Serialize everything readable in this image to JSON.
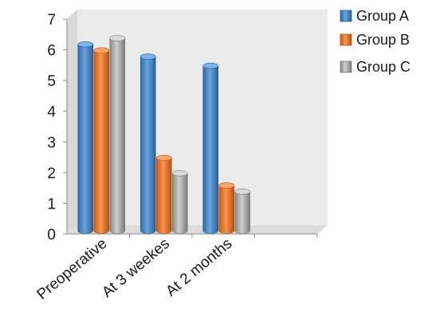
{
  "chart_data": {
    "type": "bar",
    "categories": [
      "Preoperative",
      "At 3 weekes",
      "At 2 months",
      ""
    ],
    "series": [
      {
        "name": "Group A",
        "values": [
          6.1,
          5.7,
          5.4,
          null
        ],
        "color": "#4a86c8"
      },
      {
        "name": "Group B",
        "values": [
          5.9,
          2.4,
          1.5,
          null
        ],
        "color": "#ec7a2b"
      },
      {
        "name": "Group C",
        "values": [
          6.3,
          1.9,
          1.3,
          null
        ],
        "color": "#a6a6a6"
      }
    ],
    "yticks": [
      "0",
      "1",
      "2",
      "3",
      "4",
      "5",
      "6",
      "7"
    ],
    "ylim": [
      0,
      7
    ],
    "grid": false,
    "legend": "right",
    "style": "3d-cylinder",
    "wall_color": "#ebebeb"
  }
}
